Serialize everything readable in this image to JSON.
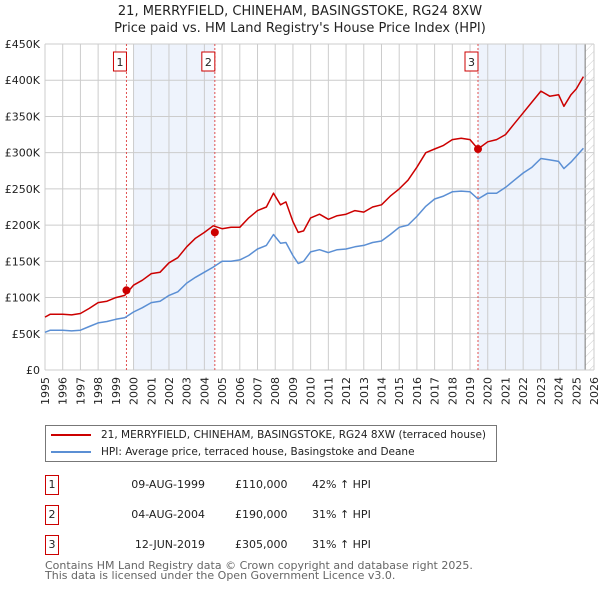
{
  "title_line1": "21, MERRYFIELD, CHINEHAM, BASINGSTOKE, RG24 8XW",
  "title_line2": "Price paid vs. HM Land Registry's House Price Index (HPI)",
  "chart_data": {
    "type": "line",
    "xlim": [
      1995,
      2026
    ],
    "ylim": [
      0,
      450000
    ],
    "x_ticks": [
      1995,
      1996,
      1997,
      1998,
      1999,
      2000,
      2001,
      2002,
      2003,
      2004,
      2005,
      2006,
      2007,
      2008,
      2009,
      2010,
      2011,
      2012,
      2013,
      2014,
      2015,
      2016,
      2017,
      2018,
      2019,
      2020,
      2021,
      2022,
      2023,
      2024,
      2025,
      2026
    ],
    "y_ticks": [
      0,
      50000,
      100000,
      150000,
      200000,
      250000,
      300000,
      350000,
      400000,
      450000
    ],
    "y_tick_labels": [
      "£0",
      "£50K",
      "£100K",
      "£150K",
      "£200K",
      "£250K",
      "£300K",
      "£350K",
      "£400K",
      "£450K"
    ],
    "grid": true,
    "shaded_ranges": [
      [
        2000.0,
        2004.59
      ],
      [
        2019.45,
        2025.5
      ]
    ],
    "future_hatch_from": 2025.5,
    "colors": {
      "property": "#cc0000",
      "hpi": "#5b8fd4",
      "shade": "#eef3fc"
    },
    "series": [
      {
        "name": "21, MERRYFIELD, CHINEHAM, BASINGSTOKE, RG24 8XW (terraced house)",
        "color": "#cc0000",
        "x": [
          1995,
          1995.3,
          1996,
          1996.5,
          1997,
          1997.5,
          1998,
          1998.5,
          1999,
          1999.5,
          2000,
          2000.5,
          2001,
          2001.5,
          2002,
          2002.5,
          2003,
          2003.5,
          2004,
          2004.5,
          2005,
          2005.5,
          2006,
          2006.5,
          2007,
          2007.5,
          2007.9,
          2008.3,
          2008.6,
          2009,
          2009.3,
          2009.6,
          2010,
          2010.5,
          2011,
          2011.5,
          2012,
          2012.5,
          2013,
          2013.5,
          2014,
          2014.5,
          2015,
          2015.5,
          2016,
          2016.5,
          2017,
          2017.5,
          2018,
          2018.5,
          2019,
          2019.45,
          2020,
          2020.5,
          2021,
          2021.5,
          2022,
          2022.5,
          2023,
          2023.5,
          2024,
          2024.3,
          2024.7,
          2025,
          2025.4
        ],
        "y": [
          73000,
          77000,
          77000,
          76000,
          78000,
          85000,
          93000,
          95000,
          100000,
          103000,
          117000,
          124000,
          133000,
          135000,
          148000,
          155000,
          170000,
          182000,
          190000,
          199000,
          195000,
          197000,
          197000,
          210000,
          220000,
          225000,
          244000,
          228000,
          232000,
          205000,
          190000,
          192000,
          210000,
          215000,
          208000,
          213000,
          215000,
          220000,
          218000,
          225000,
          228000,
          240000,
          250000,
          262000,
          280000,
          300000,
          305000,
          310000,
          318000,
          320000,
          318000,
          305000,
          315000,
          318000,
          325000,
          340000,
          355000,
          370000,
          385000,
          378000,
          380000,
          364000,
          380000,
          388000,
          405000
        ]
      },
      {
        "name": "HPI: Average price, terraced house, Basingstoke and Deane",
        "color": "#5b8fd4",
        "x": [
          1995,
          1995.3,
          1996,
          1996.5,
          1997,
          1997.5,
          1998,
          1998.5,
          1999,
          1999.5,
          2000,
          2000.5,
          2001,
          2001.5,
          2002,
          2002.5,
          2003,
          2003.5,
          2004,
          2004.5,
          2005,
          2005.5,
          2006,
          2006.5,
          2007,
          2007.5,
          2007.9,
          2008.3,
          2008.6,
          2009,
          2009.3,
          2009.6,
          2010,
          2010.5,
          2011,
          2011.5,
          2012,
          2012.5,
          2013,
          2013.5,
          2014,
          2014.5,
          2015,
          2015.5,
          2016,
          2016.5,
          2017,
          2017.5,
          2018,
          2018.5,
          2019,
          2019.45,
          2020,
          2020.5,
          2021,
          2021.5,
          2022,
          2022.5,
          2023,
          2023.5,
          2024,
          2024.3,
          2024.7,
          2025,
          2025.4
        ],
        "y": [
          52000,
          55000,
          55000,
          54000,
          55000,
          60000,
          65000,
          67000,
          70000,
          72000,
          80000,
          86000,
          93000,
          95000,
          103000,
          108000,
          120000,
          128000,
          135000,
          142000,
          150000,
          150000,
          152000,
          158000,
          167000,
          172000,
          187000,
          175000,
          176000,
          158000,
          147000,
          150000,
          163000,
          166000,
          162000,
          166000,
          167000,
          170000,
          172000,
          176000,
          178000,
          187000,
          197000,
          200000,
          212000,
          226000,
          236000,
          240000,
          246000,
          247000,
          246000,
          236000,
          244000,
          244000,
          252000,
          262000,
          272000,
          280000,
          292000,
          290000,
          288000,
          278000,
          287000,
          295000,
          306000
        ]
      }
    ],
    "sales": [
      {
        "label": "1",
        "x": 1999.6,
        "y": 110000,
        "date": "09-AUG-1999",
        "price": "£110,000",
        "hpi": "42% ↑ HPI"
      },
      {
        "label": "2",
        "x": 2004.59,
        "y": 190000,
        "date": "04-AUG-2004",
        "price": "£190,000",
        "hpi": "31% ↑ HPI"
      },
      {
        "label": "3",
        "x": 2019.45,
        "y": 305000,
        "date": "12-JUN-2019",
        "price": "£305,000",
        "hpi": "31% ↑ HPI"
      }
    ]
  },
  "legend": {
    "property": "21, MERRYFIELD, CHINEHAM, BASINGSTOKE, RG24 8XW (terraced house)",
    "hpi": "HPI: Average price, terraced house, Basingstoke and Deane"
  },
  "footer": {
    "line1": "Contains HM Land Registry data © Crown copyright and database right 2025.",
    "line2": "This data is licensed under the Open Government Licence v3.0."
  }
}
